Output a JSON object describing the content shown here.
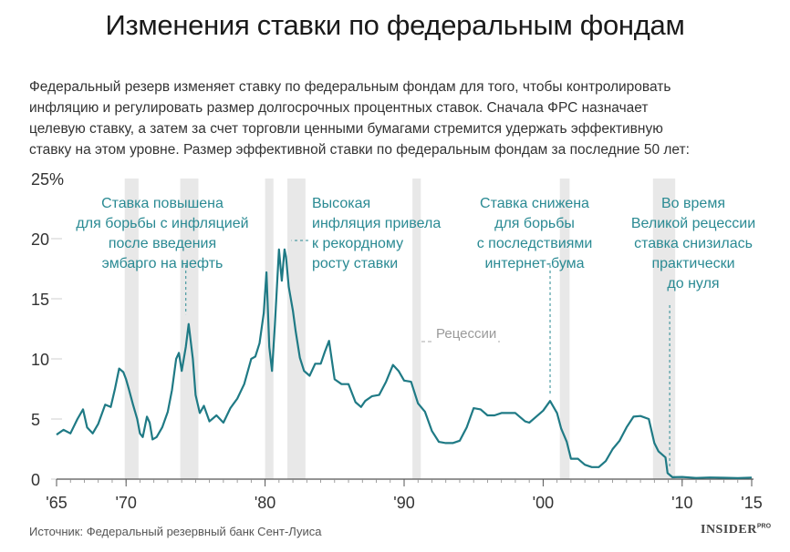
{
  "title": "Изменения ставки по федеральным фондам",
  "intro": [
    "Федеральный резерв изменяет ставку по федеральным фондам для того, чтобы контролировать",
    "инфляцию и регулировать размер долгосрочных процентных ставок. Сначала ФРС назначает",
    "целевую ставку, а затем за счет торговли ценными бумагами стремится удержать эффективную",
    "ставку на этом уровне. Размер эффективной ставки по федеральным фондам за последние 50 лет:"
  ],
  "source": "Источник: Федеральный резервный банк Сент-Луиса",
  "logo": {
    "text": "INSIDER",
    "superscript": "PRO"
  },
  "colors": {
    "line": "#1f7a85",
    "annotation": "#2a8a93",
    "recession": "#e8e8e8",
    "axis": "#555555"
  },
  "chart_data": {
    "type": "line",
    "ylim": [
      0,
      25
    ],
    "xlim": [
      1965,
      2015
    ],
    "y_ticks": [
      {
        "value": 0,
        "label": "0"
      },
      {
        "value": 5,
        "label": "5"
      },
      {
        "value": 10,
        "label": "10"
      },
      {
        "value": 15,
        "label": "15"
      },
      {
        "value": 20,
        "label": "20"
      },
      {
        "value": 25,
        "label": "25%"
      }
    ],
    "x_ticks": [
      {
        "value": 1965,
        "label": "'65"
      },
      {
        "value": 1970,
        "label": "'70"
      },
      {
        "value": 1980,
        "label": "'80"
      },
      {
        "value": 1990,
        "label": "'90"
      },
      {
        "value": 2000,
        "label": "'00"
      },
      {
        "value": 2010,
        "label": "'10"
      },
      {
        "value": 2015,
        "label": "'15"
      }
    ],
    "recessions": [
      {
        "start": 1969.9,
        "end": 1970.9
      },
      {
        "start": 1973.9,
        "end": 1975.2
      },
      {
        "start": 1980.0,
        "end": 1980.6
      },
      {
        "start": 1981.6,
        "end": 1982.9
      },
      {
        "start": 1990.6,
        "end": 1991.2
      },
      {
        "start": 2001.2,
        "end": 2001.9
      },
      {
        "start": 2007.9,
        "end": 2009.5
      }
    ],
    "legend_label": "Рецессии",
    "series": [
      {
        "x": [
          1965.0,
          1965.5,
          1966.0,
          1966.5,
          1966.9,
          1967.2,
          1967.6,
          1968.0,
          1968.5,
          1968.9,
          1969.2,
          1969.5,
          1969.8,
          1970.0,
          1970.2,
          1970.5,
          1970.8,
          1971.0,
          1971.2,
          1971.5,
          1971.7,
          1971.9,
          1972.2,
          1972.6,
          1973.0,
          1973.3,
          1973.6,
          1973.8,
          1974.0,
          1974.3,
          1974.5,
          1974.8,
          1975.0,
          1975.3,
          1975.6,
          1976.0,
          1976.5,
          1977.0,
          1977.5,
          1978.0,
          1978.5,
          1979.0,
          1979.3,
          1979.6,
          1979.9,
          1980.1,
          1980.3,
          1980.5,
          1980.7,
          1981.0,
          1981.2,
          1981.4,
          1981.5,
          1981.7,
          1982.0,
          1982.2,
          1982.5,
          1982.8,
          1983.2,
          1983.6,
          1984.0,
          1984.3,
          1984.6,
          1985.0,
          1985.5,
          1986.0,
          1986.5,
          1986.9,
          1987.2,
          1987.7,
          1988.2,
          1988.7,
          1989.2,
          1989.6,
          1990.0,
          1990.5,
          1991.0,
          1991.5,
          1992.0,
          1992.5,
          1993.0,
          1993.5,
          1994.0,
          1994.5,
          1995.0,
          1995.5,
          1996.0,
          1996.5,
          1997.0,
          1998.0,
          1998.7,
          1999.0,
          1999.5,
          2000.0,
          2000.5,
          2001.0,
          2001.3,
          2001.7,
          2002.0,
          2002.5,
          2003.0,
          2003.5,
          2004.0,
          2004.5,
          2005.0,
          2005.5,
          2006.0,
          2006.5,
          2007.0,
          2007.6,
          2008.0,
          2008.3,
          2008.6,
          2008.8,
          2008.95,
          2009.3,
          2010.0,
          2011.0,
          2012.0,
          2013.0,
          2014.0,
          2015.0
        ],
        "y": [
          3.7,
          4.1,
          3.8,
          5.0,
          5.8,
          4.3,
          3.8,
          4.6,
          6.2,
          6.0,
          7.5,
          9.2,
          8.9,
          8.3,
          7.5,
          6.2,
          5.0,
          3.8,
          3.5,
          5.2,
          4.7,
          3.3,
          3.5,
          4.3,
          5.6,
          7.4,
          10.0,
          10.5,
          9.0,
          11.0,
          12.9,
          10.0,
          7.0,
          5.5,
          6.1,
          4.8,
          5.3,
          4.7,
          5.9,
          6.7,
          7.9,
          10.0,
          10.2,
          11.3,
          13.8,
          17.2,
          11.0,
          9.0,
          12.8,
          19.1,
          16.5,
          19.1,
          18.5,
          16.0,
          14.0,
          12.3,
          10.1,
          9.0,
          8.6,
          9.6,
          9.6,
          10.6,
          11.5,
          8.3,
          7.9,
          7.9,
          6.4,
          6.0,
          6.5,
          6.9,
          7.0,
          8.1,
          9.5,
          9.0,
          8.2,
          8.1,
          6.3,
          5.6,
          4.0,
          3.1,
          3.0,
          3.0,
          3.2,
          4.3,
          5.9,
          5.8,
          5.3,
          5.3,
          5.5,
          5.5,
          4.8,
          4.7,
          5.2,
          5.7,
          6.5,
          5.5,
          4.2,
          3.1,
          1.7,
          1.7,
          1.2,
          1.0,
          1.0,
          1.5,
          2.5,
          3.2,
          4.3,
          5.2,
          5.25,
          5.0,
          3.0,
          2.3,
          2.0,
          1.8,
          0.5,
          0.16,
          0.18,
          0.1,
          0.14,
          0.11,
          0.09,
          0.13
        ]
      }
    ],
    "annotations": [
      {
        "lines": [
          "Ставка повышена",
          "для борьбы с инфляцией",
          "после введения",
          "эмбарго на нефть"
        ],
        "x": 1974.3,
        "y": 13.4
      },
      {
        "lines": [
          "Высокая",
          "инфляция привела",
          "к рекордному",
          "росту ставки"
        ],
        "x": 1981.7,
        "y": 20.0
      },
      {
        "lines": [
          "Ставка снижена",
          "для борьбы",
          "с последствиями",
          "интернет-бума"
        ],
        "x": 2000.5,
        "y": 6.8
      },
      {
        "lines": [
          "Во время",
          "Великой рецессии",
          "ставка снизилась",
          "практически",
          "до нуля"
        ],
        "x": 2009.1,
        "y": 0.6
      }
    ]
  }
}
